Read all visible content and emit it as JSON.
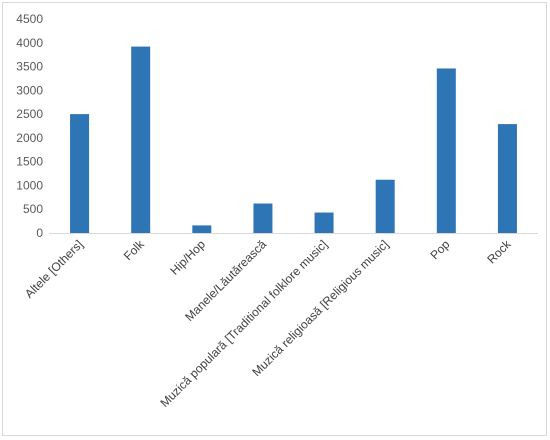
{
  "chart_data": {
    "type": "bar",
    "categories": [
      "Altele [Others]",
      "Folk",
      "Hip/Hop",
      "Manele/Lăutărească",
      "Muzică populară [Traditional folklore music]",
      "Muzică religioasă [Religious music]",
      "Pop",
      "Rock"
    ],
    "values": [
      2500,
      3920,
      160,
      620,
      430,
      1120,
      3460,
      2290
    ],
    "title": "",
    "xlabel": "",
    "ylabel": "",
    "ylim": [
      0,
      4500
    ],
    "yticks": [
      "0",
      "500",
      "1000",
      "1500",
      "2000",
      "2500",
      "3000",
      "3500",
      "4000",
      "4500"
    ],
    "grid": false,
    "legend": "none",
    "bar_color": "#2e75b6"
  }
}
